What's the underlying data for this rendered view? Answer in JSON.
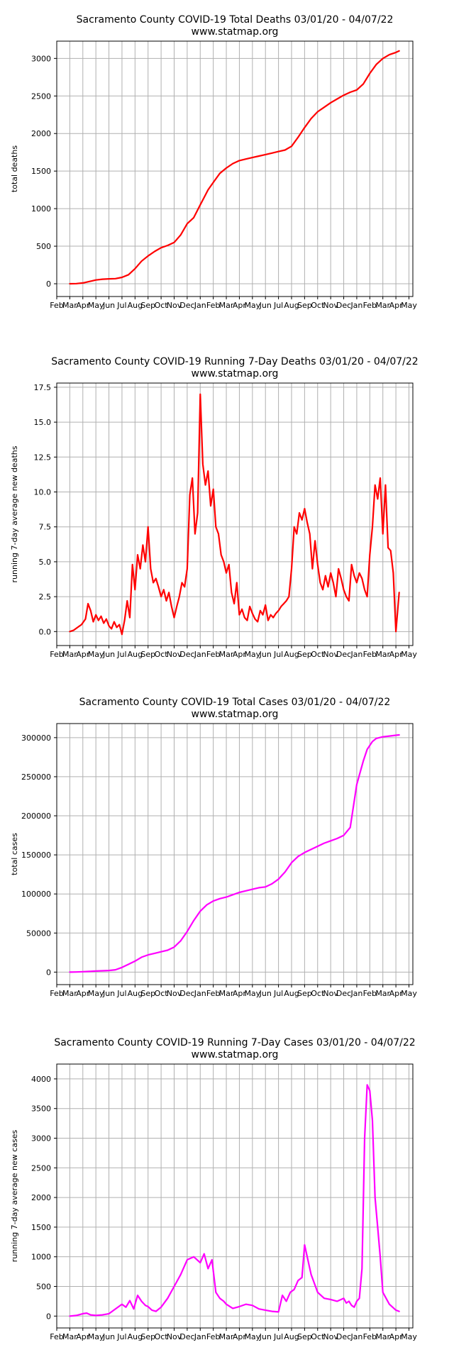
{
  "chart_data": [
    {
      "type": "line",
      "title": "Sacramento County COVID-19 Total Deaths 03/01/20 - 04/07/22",
      "subtitle": "www.statmap.org",
      "xlabel": "",
      "ylabel": "total deaths",
      "color": "#ff0000",
      "ylim": [
        -170,
        3230
      ],
      "yticks": [
        0,
        500,
        1000,
        1500,
        2000,
        2500,
        3000
      ],
      "xlim": [
        0,
        27.3
      ],
      "xticks": [
        "Feb",
        "Mar",
        "Apr",
        "May",
        "Jun",
        "Jul",
        "Aug",
        "Sep",
        "Oct",
        "Nov",
        "Dec",
        "Jan",
        "Feb",
        "Mar",
        "Apr",
        "May",
        "Jun",
        "Jul",
        "Aug",
        "Sep",
        "Oct",
        "Nov",
        "Dec",
        "Jan",
        "Feb",
        "Mar",
        "Apr",
        "May"
      ],
      "grid": true,
      "series": [
        {
          "x": [
            1.0,
            1.5,
            2.0,
            2.5,
            3.0,
            3.5,
            4.0,
            4.5,
            5.0,
            5.5,
            6.0,
            6.5,
            7.0,
            7.5,
            8.0,
            8.5,
            9.0,
            9.5,
            10.0,
            10.5,
            11.0,
            11.3,
            11.6,
            12.0,
            12.5,
            13.0,
            13.5,
            14.0,
            14.5,
            15.0,
            15.5,
            16.0,
            16.5,
            17.0,
            17.5,
            18.0,
            18.5,
            19.0,
            19.5,
            20.0,
            20.5,
            21.0,
            21.5,
            22.0,
            22.5,
            23.0,
            23.5,
            24.0,
            24.5,
            25.0,
            25.5,
            26.0,
            26.25
          ],
          "y": [
            0,
            2,
            10,
            30,
            50,
            60,
            65,
            68,
            85,
            120,
            200,
            300,
            370,
            430,
            480,
            510,
            550,
            650,
            800,
            880,
            1050,
            1150,
            1250,
            1350,
            1470,
            1540,
            1600,
            1640,
            1660,
            1680,
            1700,
            1720,
            1740,
            1760,
            1780,
            1830,
            1950,
            2080,
            2200,
            2290,
            2350,
            2410,
            2460,
            2510,
            2550,
            2580,
            2660,
            2800,
            2920,
            3000,
            3050,
            3080,
            3100
          ]
        }
      ]
    },
    {
      "type": "line",
      "title": "Sacramento County COVID-19 Running 7-Day Deaths 03/01/20 - 04/07/22",
      "subtitle": "www.statmap.org",
      "xlabel": "",
      "ylabel": "running 7-day average new deaths",
      "color": "#ff0000",
      "ylim": [
        -1.0,
        17.8
      ],
      "yticks": [
        0.0,
        2.5,
        5.0,
        7.5,
        10.0,
        12.5,
        15.0,
        17.5
      ],
      "ytick_labels": [
        "0.0",
        "2.5",
        "5.0",
        "7.5",
        "10.0",
        "12.5",
        "15.0",
        "17.5"
      ],
      "xlim": [
        0,
        27.3
      ],
      "xticks": [
        "Feb",
        "Mar",
        "Apr",
        "May",
        "Jun",
        "Jul",
        "Aug",
        "Sep",
        "Oct",
        "Nov",
        "Dec",
        "Jan",
        "Feb",
        "Mar",
        "Apr",
        "May",
        "Jun",
        "Jul",
        "Aug",
        "Sep",
        "Oct",
        "Nov",
        "Dec",
        "Jan",
        "Feb",
        "Mar",
        "Apr",
        "May"
      ],
      "grid": true,
      "series": [
        {
          "x": [
            1.0,
            1.3,
            1.6,
            1.9,
            2.2,
            2.4,
            2.6,
            2.8,
            3.0,
            3.2,
            3.4,
            3.6,
            3.8,
            4.0,
            4.2,
            4.4,
            4.6,
            4.8,
            5.0,
            5.2,
            5.4,
            5.6,
            5.8,
            6.0,
            6.2,
            6.4,
            6.6,
            6.8,
            7.0,
            7.2,
            7.4,
            7.6,
            7.8,
            8.0,
            8.2,
            8.4,
            8.6,
            8.8,
            9.0,
            9.2,
            9.4,
            9.6,
            9.8,
            10.0,
            10.2,
            10.4,
            10.6,
            10.8,
            11.0,
            11.2,
            11.4,
            11.6,
            11.8,
            12.0,
            12.2,
            12.4,
            12.6,
            12.8,
            13.0,
            13.2,
            13.4,
            13.6,
            13.8,
            14.0,
            14.2,
            14.4,
            14.6,
            14.8,
            15.0,
            15.2,
            15.4,
            15.6,
            15.8,
            16.0,
            16.2,
            16.4,
            16.6,
            16.8,
            17.0,
            17.2,
            17.4,
            17.6,
            17.8,
            18.0,
            18.2,
            18.4,
            18.6,
            18.8,
            19.0,
            19.2,
            19.4,
            19.6,
            19.8,
            20.0,
            20.2,
            20.4,
            20.6,
            20.8,
            21.0,
            21.2,
            21.4,
            21.6,
            21.8,
            22.0,
            22.2,
            22.4,
            22.6,
            22.8,
            23.0,
            23.2,
            23.4,
            23.6,
            23.8,
            24.0,
            24.2,
            24.4,
            24.6,
            24.8,
            25.0,
            25.2,
            25.4,
            25.6,
            25.8,
            26.0,
            26.25
          ],
          "y": [
            0.0,
            0.1,
            0.3,
            0.5,
            0.9,
            2.0,
            1.5,
            0.7,
            1.2,
            0.8,
            1.1,
            0.6,
            0.9,
            0.4,
            0.2,
            0.7,
            0.3,
            0.5,
            -0.2,
            0.8,
            2.2,
            1.0,
            4.8,
            3.0,
            5.5,
            4.5,
            6.2,
            5.0,
            7.5,
            4.5,
            3.5,
            3.8,
            3.2,
            2.5,
            3.0,
            2.2,
            2.8,
            1.8,
            1.0,
            1.8,
            2.5,
            3.5,
            3.2,
            4.5,
            9.8,
            11.0,
            7.0,
            8.5,
            17.0,
            12.0,
            10.5,
            11.5,
            9.0,
            10.2,
            7.5,
            7.0,
            5.5,
            5.0,
            4.2,
            4.8,
            2.8,
            2.0,
            3.5,
            1.2,
            1.6,
            1.0,
            0.8,
            1.8,
            1.3,
            0.9,
            0.7,
            1.5,
            1.2,
            1.9,
            0.8,
            1.2,
            1.0,
            1.3,
            1.5,
            1.8,
            2.0,
            2.2,
            2.5,
            4.5,
            7.5,
            7.0,
            8.5,
            8.0,
            8.8,
            7.8,
            7.0,
            4.5,
            6.5,
            4.8,
            3.5,
            3.0,
            4.0,
            3.2,
            4.2,
            3.5,
            2.5,
            4.5,
            3.8,
            3.0,
            2.5,
            2.2,
            4.8,
            4.0,
            3.5,
            4.2,
            3.8,
            3.0,
            2.5,
            5.5,
            7.5,
            10.5,
            9.5,
            11.0,
            7.0,
            10.5,
            6.0,
            5.8,
            4.2,
            0.0,
            2.8
          ]
        }
      ]
    },
    {
      "type": "line",
      "title": "Sacramento County COVID-19 Total Cases 03/01/20 - 04/07/22",
      "subtitle": "www.statmap.org",
      "xlabel": "",
      "ylabel": "total cases",
      "color": "#ff00ff",
      "ylim": [
        -16000,
        318000
      ],
      "yticks": [
        0,
        50000,
        100000,
        150000,
        200000,
        250000,
        300000
      ],
      "xlim": [
        0,
        27.3
      ],
      "xticks": [
        "Feb",
        "Mar",
        "Apr",
        "May",
        "Jun",
        "Jul",
        "Aug",
        "Sep",
        "Oct",
        "Nov",
        "Dec",
        "Jan",
        "Feb",
        "Mar",
        "Apr",
        "May",
        "Jun",
        "Jul",
        "Aug",
        "Sep",
        "Oct",
        "Nov",
        "Dec",
        "Jan",
        "Feb",
        "Mar",
        "Apr",
        "May"
      ],
      "grid": true,
      "series": [
        {
          "x": [
            1.0,
            1.5,
            2.0,
            2.5,
            3.0,
            3.5,
            4.0,
            4.5,
            5.0,
            5.5,
            6.0,
            6.5,
            7.0,
            7.5,
            8.0,
            8.5,
            9.0,
            9.5,
            10.0,
            10.5,
            11.0,
            11.5,
            12.0,
            12.5,
            13.0,
            13.5,
            14.0,
            14.5,
            15.0,
            15.5,
            16.0,
            16.5,
            17.0,
            17.5,
            18.0,
            18.5,
            19.0,
            19.5,
            20.0,
            20.5,
            21.0,
            21.5,
            22.0,
            22.5,
            23.0,
            23.5,
            23.8,
            24.0,
            24.2,
            24.5,
            25.0,
            25.5,
            26.0,
            26.25
          ],
          "y": [
            0,
            200,
            500,
            900,
            1300,
            1700,
            2100,
            3000,
            6000,
            10000,
            14000,
            19000,
            22000,
            24000,
            26000,
            28000,
            32000,
            40000,
            52000,
            66000,
            78000,
            86000,
            91000,
            94000,
            96000,
            99000,
            102000,
            104000,
            106000,
            108000,
            109000,
            113000,
            119000,
            128000,
            140000,
            148000,
            153000,
            157000,
            161000,
            165000,
            168000,
            171000,
            175000,
            185000,
            240000,
            270000,
            285000,
            290000,
            295000,
            299000,
            301000,
            302000,
            303000,
            303500
          ]
        }
      ]
    },
    {
      "type": "line",
      "title": "Sacramento County COVID-19 Running 7-Day Cases 03/01/20 - 04/07/22",
      "subtitle": "www.statmap.org",
      "xlabel": "",
      "ylabel": "running 7-day average new cases",
      "color": "#ff00ff",
      "ylim": [
        -200,
        4250
      ],
      "yticks": [
        0,
        500,
        1000,
        1500,
        2000,
        2500,
        3000,
        3500,
        4000
      ],
      "xlim": [
        0,
        27.3
      ],
      "xticks": [
        "Feb",
        "Mar",
        "Apr",
        "May",
        "Jun",
        "Jul",
        "Aug",
        "Sep",
        "Oct",
        "Nov",
        "Dec",
        "Jan",
        "Feb",
        "Mar",
        "Apr",
        "May",
        "Jun",
        "Jul",
        "Aug",
        "Sep",
        "Oct",
        "Nov",
        "Dec",
        "Jan",
        "Feb",
        "Mar",
        "Apr",
        "May"
      ],
      "grid": true,
      "series": [
        {
          "x": [
            1.0,
            1.5,
            2.0,
            2.3,
            2.6,
            3.0,
            3.5,
            4.0,
            4.5,
            5.0,
            5.3,
            5.6,
            5.9,
            6.2,
            6.5,
            6.8,
            7.0,
            7.3,
            7.6,
            8.0,
            8.5,
            9.0,
            9.5,
            10.0,
            10.5,
            11.0,
            11.3,
            11.6,
            11.9,
            12.2,
            12.5,
            12.8,
            13.0,
            13.5,
            14.0,
            14.5,
            15.0,
            15.5,
            16.0,
            16.5,
            17.0,
            17.3,
            17.6,
            17.9,
            18.2,
            18.5,
            18.8,
            19.0,
            19.5,
            20.0,
            20.5,
            21.0,
            21.5,
            22.0,
            22.2,
            22.4,
            22.6,
            22.8,
            23.0,
            23.2,
            23.4,
            23.6,
            23.8,
            24.0,
            24.2,
            24.4,
            24.6,
            24.8,
            25.0,
            25.5,
            26.0,
            26.25
          ],
          "y": [
            0,
            10,
            40,
            50,
            20,
            10,
            20,
            40,
            120,
            200,
            150,
            260,
            120,
            350,
            250,
            180,
            160,
            100,
            80,
            150,
            300,
            500,
            700,
            950,
            1000,
            900,
            1050,
            800,
            950,
            400,
            300,
            250,
            200,
            130,
            160,
            200,
            180,
            120,
            100,
            80,
            70,
            350,
            250,
            400,
            450,
            600,
            650,
            1200,
            700,
            400,
            300,
            280,
            250,
            300,
            220,
            250,
            180,
            150,
            250,
            300,
            800,
            3000,
            3900,
            3800,
            3300,
            2000,
            1500,
            1000,
            400,
            200,
            100,
            80
          ]
        }
      ]
    }
  ]
}
